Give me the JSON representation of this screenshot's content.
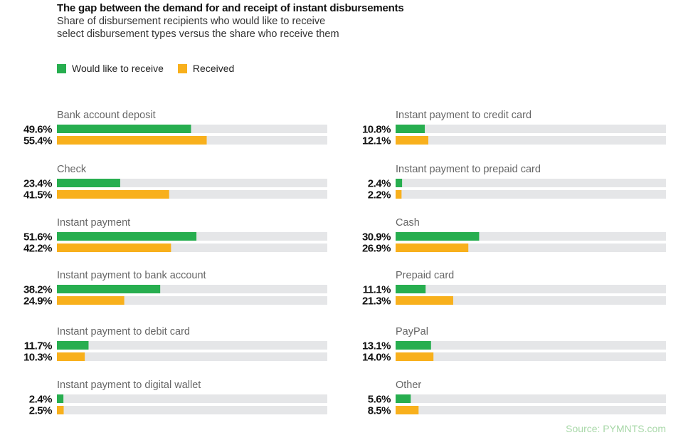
{
  "chart_data": {
    "type": "bar",
    "orientation": "horizontal",
    "title": "The gap between the demand for and receipt of instant disbursements",
    "subtitle": "Share of disbursement recipients who would like to receive select disbursement types versus the share who receive them",
    "subtitle_lines": [
      "Share of disbursement recipients who would like to receive",
      "select disbursement types versus the share who receive them"
    ],
    "xlim": [
      0,
      100
    ],
    "value_suffix": "%",
    "legend": {
      "placement": "top-left",
      "entries": [
        {
          "name": "Would like to receive",
          "color": "#27ae4f"
        },
        {
          "name": "Received",
          "color": "#f8b01c"
        }
      ]
    },
    "track_color": "#e5e6e8",
    "series": [
      {
        "name": "Would like to receive",
        "color": "#27ae4f"
      },
      {
        "name": "Received",
        "color": "#f8b01c"
      }
    ],
    "panels": [
      {
        "column": "left",
        "categories": [
          {
            "label": "Bank account deposit",
            "values": [
              49.6,
              55.4
            ]
          },
          {
            "label": "Check",
            "values": [
              23.4,
              41.5
            ]
          },
          {
            "label": "Instant payment",
            "values": [
              51.6,
              42.2
            ]
          },
          {
            "label": "Instant payment to bank account",
            "values": [
              38.2,
              24.9
            ]
          },
          {
            "label": "Instant payment to debit card",
            "values": [
              11.7,
              10.3
            ]
          },
          {
            "label": "Instant payment to digital wallet",
            "values": [
              2.4,
              2.5
            ]
          }
        ]
      },
      {
        "column": "right",
        "categories": [
          {
            "label": "Instant payment to credit card",
            "values": [
              10.8,
              12.1
            ]
          },
          {
            "label": "Instant payment to prepaid card",
            "values": [
              2.4,
              2.2
            ]
          },
          {
            "label": "Cash",
            "values": [
              30.9,
              26.9
            ]
          },
          {
            "label": "Prepaid card",
            "values": [
              11.1,
              21.3
            ]
          },
          {
            "label": "PayPal",
            "values": [
              13.1,
              14.0
            ]
          },
          {
            "label": "Other",
            "values": [
              5.6,
              8.5
            ]
          }
        ]
      }
    ],
    "source": "Source: PYMNTS.com"
  }
}
